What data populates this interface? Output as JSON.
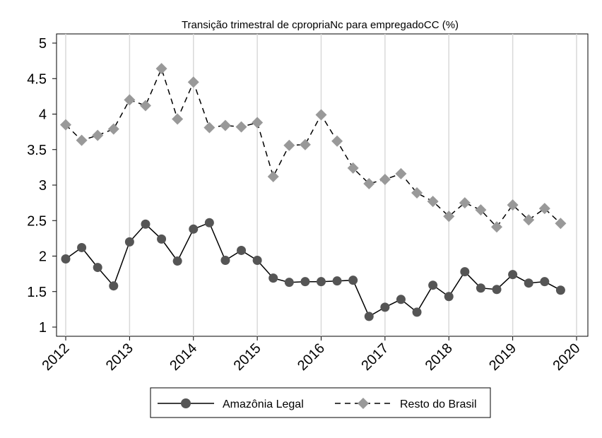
{
  "chart_data": {
    "type": "line",
    "title": "Transição trimestral de cpropriaNc para empregadoCC (%)",
    "xlabel": "",
    "ylabel": "",
    "x_range": [
      2012,
      2020
    ],
    "xticks": [
      "2012",
      "2013",
      "2014",
      "2015",
      "2016",
      "2017",
      "2018",
      "2019",
      "2020"
    ],
    "ylim": [
      1,
      5
    ],
    "yticks": [
      "1",
      "1.5",
      "2",
      "2.5",
      "3",
      "3.5",
      "4",
      "4.5",
      "5"
    ],
    "grid": "vertical",
    "legend_position": "bottom",
    "x": [
      2012.0,
      2012.25,
      2012.5,
      2012.75,
      2013.0,
      2013.25,
      2013.5,
      2013.75,
      2014.0,
      2014.25,
      2014.5,
      2014.75,
      2015.0,
      2015.25,
      2015.5,
      2015.75,
      2016.0,
      2016.25,
      2016.5,
      2016.75,
      2017.0,
      2017.25,
      2017.5,
      2017.75,
      2018.0,
      2018.25,
      2018.5,
      2018.75,
      2019.0,
      2019.25,
      2019.5,
      2019.75
    ],
    "series": [
      {
        "name": "Amazônia Legal",
        "color": "#555555",
        "line": "solid",
        "marker": "circle",
        "values": [
          1.96,
          2.12,
          1.84,
          1.58,
          2.2,
          2.45,
          2.24,
          1.93,
          2.38,
          2.47,
          1.94,
          2.08,
          1.94,
          1.69,
          1.63,
          1.64,
          1.64,
          1.65,
          1.66,
          1.15,
          1.28,
          1.39,
          1.21,
          1.59,
          1.43,
          1.78,
          1.55,
          1.53,
          1.74,
          1.62,
          1.64,
          1.52
        ]
      },
      {
        "name": "Resto do Brasil",
        "color": "#999999",
        "line": "dashed",
        "marker": "diamond",
        "values": [
          3.85,
          3.63,
          3.7,
          3.79,
          4.2,
          4.12,
          4.64,
          3.93,
          4.45,
          3.81,
          3.84,
          3.82,
          3.88,
          3.12,
          3.56,
          3.57,
          3.99,
          3.62,
          3.24,
          3.02,
          3.08,
          3.16,
          2.89,
          2.77,
          2.56,
          2.75,
          2.65,
          2.41,
          2.72,
          2.51,
          2.67,
          2.46
        ]
      }
    ]
  }
}
